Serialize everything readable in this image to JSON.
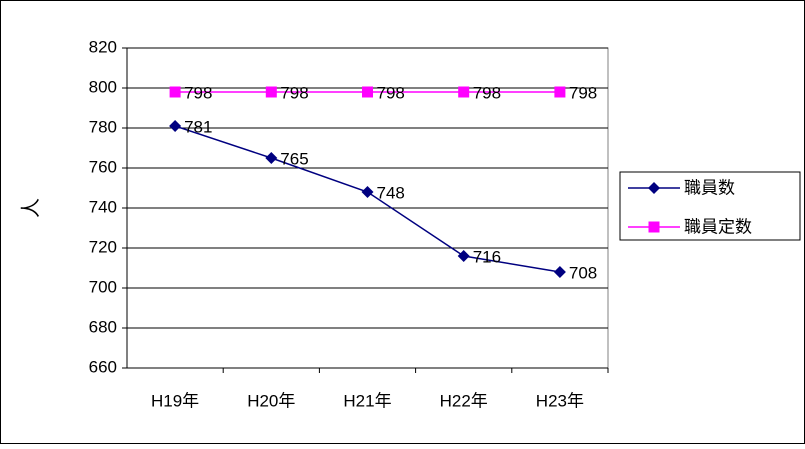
{
  "chart_data": {
    "type": "line",
    "y_label": "人",
    "categories": [
      "H19年",
      "H20年",
      "H21年",
      "H22年",
      "H23年"
    ],
    "series": [
      {
        "name": "職員数",
        "color": "#000080",
        "marker": "diamond",
        "values": [
          781,
          765,
          748,
          716,
          708
        ]
      },
      {
        "name": "職員定数",
        "color": "#ff00ff",
        "marker": "square",
        "values": [
          798,
          798,
          798,
          798,
          798
        ]
      }
    ],
    "ylim": [
      660,
      820
    ],
    "yticks": [
      660,
      680,
      700,
      720,
      740,
      760,
      780,
      800,
      820
    ],
    "grid": true,
    "legend": "right",
    "data_labels": true
  }
}
